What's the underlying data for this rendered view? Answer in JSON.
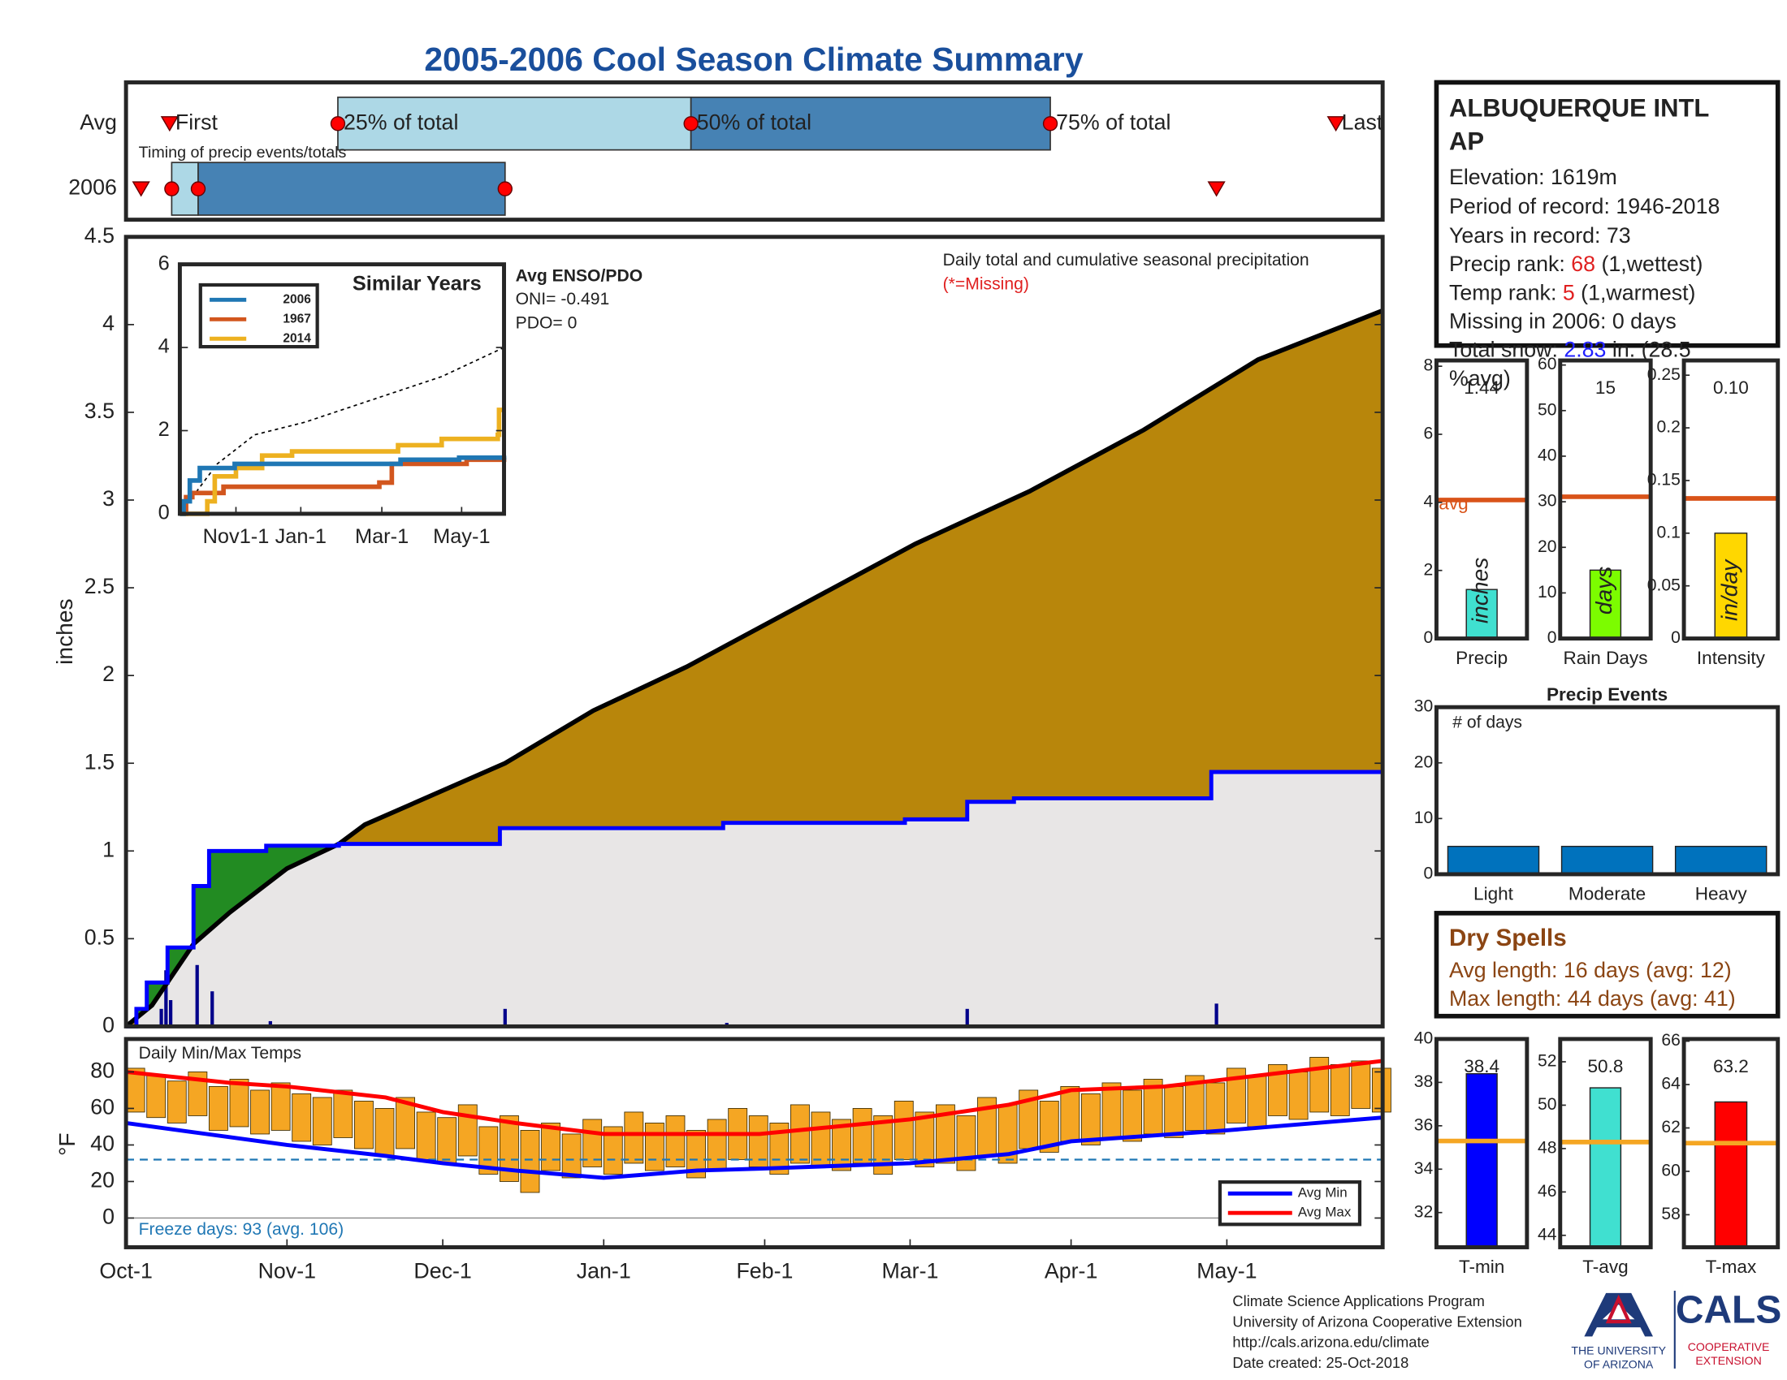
{
  "title": "2005-2006 Cool Season Climate Summary",
  "chart_data": [
    {
      "type": "timing",
      "subtitle": "Timing of precip events/totals",
      "xlim": [
        0,
        242
      ],
      "rows": [
        {
          "name": "Avg",
          "first": 8.4,
          "p25": 40.8,
          "p50": 108.8,
          "p75": 178,
          "last": 233,
          "labels": {
            "first": "First",
            "p25": "25% of total",
            "p50": "50% of total",
            "p75": "75% of total",
            "last": "Last"
          }
        },
        {
          "name": "2006",
          "first": 2.9,
          "p25": 8.8,
          "p50": 13.9,
          "p75": 73,
          "last": 210
        }
      ],
      "colors": {
        "light": "#add8e6",
        "dark": "#4682b4",
        "marker": "#ff0000"
      }
    },
    {
      "type": "area",
      "ylabel": "inches",
      "annotation": "Daily total and cumulative seasonal precipitation",
      "note": "(*=Missing)",
      "xlim": [
        0,
        242
      ],
      "ylim": [
        0,
        4.5
      ],
      "yticks": [
        0,
        0.5,
        1,
        1.5,
        2,
        2.5,
        3,
        3.5,
        4,
        4.5
      ],
      "series": [
        {
          "color": "#0000ff",
          "step": true,
          "x": [
            0,
            2,
            4,
            8,
            13,
            16,
            27,
            41,
            72,
            115,
            150,
            162,
            171,
            209,
            242
          ],
          "values": [
            0,
            0.1,
            0.25,
            0.45,
            0.8,
            1.0,
            1.03,
            1.04,
            1.13,
            1.16,
            1.18,
            1.28,
            1.3,
            1.45,
            1.45
          ]
        },
        {
          "color": "#000000",
          "step": false,
          "x": [
            0,
            5,
            13,
            20,
            31,
            41,
            46,
            73,
            90,
            108,
            130,
            152,
            174,
            196,
            218,
            242
          ],
          "values": [
            0,
            0.12,
            0.47,
            0.65,
            0.9,
            1.04,
            1.15,
            1.5,
            1.8,
            2.05,
            2.4,
            2.75,
            3.05,
            3.4,
            3.8,
            4.08
          ]
        }
      ],
      "daily": {
        "color": "#00008b",
        "x": [
          6.8,
          7.7,
          8.6,
          13.7,
          16.6,
          27.8,
          73,
          115.7,
          162,
          210
        ],
        "values": [
          0.1,
          0.32,
          0.15,
          0.35,
          0.2,
          0.03,
          0.1,
          0.02,
          0.1,
          0.13
        ]
      },
      "fill_colors": {
        "above": "#228b22",
        "below": "#b8860b",
        "under": "#e8e6e6"
      }
    },
    {
      "type": "line",
      "title": "Similar Years",
      "xlim": [
        0,
        260
      ],
      "ylim": [
        0,
        6
      ],
      "yticks": [
        0,
        2,
        4,
        6
      ],
      "xticks": [
        {
          "value": 45,
          "label": "Nov1-1"
        },
        {
          "value": 97,
          "label": "Jan-1"
        },
        {
          "value": 162,
          "label": "Mar-1"
        },
        {
          "value": 226,
          "label": "May-1"
        }
      ],
      "series": [
        {
          "name": "2006",
          "color": "#1f77b4",
          "x": [
            0,
            3,
            8,
            16,
            44,
            177,
            224,
            260
          ],
          "values": [
            0,
            0.3,
            0.8,
            1.1,
            1.2,
            1.3,
            1.35,
            1.4
          ]
        },
        {
          "name": "1967",
          "color": "#d2561e",
          "x": [
            0,
            5,
            10,
            35,
            160,
            170,
            230,
            260
          ],
          "values": [
            0,
            0.4,
            0.5,
            0.65,
            0.75,
            1.2,
            1.3,
            1.35
          ]
        },
        {
          "name": "2014",
          "color": "#edb120",
          "x": [
            0,
            22,
            28,
            45,
            66,
            90,
            130,
            175,
            210,
            255,
            256,
            260
          ],
          "values": [
            0,
            0.3,
            0.9,
            1.1,
            1.4,
            1.5,
            1.5,
            1.65,
            1.8,
            1.9,
            2.5,
            2.5
          ]
        }
      ],
      "avg": {
        "color": "#000000",
        "x": [
          0,
          10,
          30,
          60,
          100,
          160,
          210,
          260
        ],
        "values": [
          0,
          0.4,
          1.2,
          1.9,
          2.2,
          2.8,
          3.3,
          4.0
        ]
      },
      "annotation_title": "Avg ENSO/PDO",
      "annotations": [
        "ONI= -0.491",
        "PDO= 0"
      ]
    },
    {
      "type": "range-bar",
      "title": "Daily Min/Max Temps",
      "ylabel": "°F",
      "xlim": [
        0,
        242
      ],
      "ylim": [
        -16,
        98
      ],
      "yticks": [
        0,
        20,
        40,
        60,
        80
      ],
      "xticks": [
        {
          "value": 0,
          "label": "Oct-1"
        },
        {
          "value": 31,
          "label": "Nov-1"
        },
        {
          "value": 61,
          "label": "Dec-1"
        },
        {
          "value": 92,
          "label": "Jan-1"
        },
        {
          "value": 123,
          "label": "Feb-1"
        },
        {
          "value": 151,
          "label": "Mar-1"
        },
        {
          "value": 182,
          "label": "Apr-1"
        },
        {
          "value": 212,
          "label": "May-1"
        }
      ],
      "x": [
        0,
        4,
        8,
        12,
        16,
        20,
        24,
        28,
        32,
        36,
        40,
        44,
        48,
        52,
        56,
        60,
        64,
        68,
        72,
        76,
        80,
        84,
        88,
        92,
        96,
        100,
        104,
        108,
        112,
        116,
        120,
        124,
        128,
        132,
        136,
        140,
        144,
        148,
        152,
        156,
        160,
        164,
        168,
        172,
        176,
        180,
        184,
        188,
        192,
        196,
        200,
        204,
        208,
        212,
        216,
        220,
        224,
        228,
        232,
        236,
        240
      ],
      "low": [
        58,
        55,
        52,
        56,
        48,
        50,
        46,
        48,
        42,
        40,
        44,
        38,
        34,
        38,
        32,
        30,
        34,
        24,
        20,
        14,
        26,
        22,
        28,
        24,
        30,
        26,
        28,
        22,
        26,
        32,
        28,
        24,
        30,
        28,
        26,
        30,
        24,
        32,
        28,
        30,
        26,
        34,
        30,
        38,
        36,
        42,
        40,
        44,
        42,
        46,
        44,
        48,
        46,
        52,
        50,
        56,
        54,
        58,
        56,
        60,
        58
      ],
      "high": [
        82,
        78,
        75,
        80,
        72,
        76,
        70,
        74,
        68,
        66,
        70,
        64,
        60,
        66,
        58,
        55,
        62,
        50,
        56,
        48,
        52,
        46,
        54,
        50,
        58,
        52,
        56,
        48,
        54,
        60,
        56,
        52,
        62,
        58,
        54,
        60,
        56,
        64,
        58,
        62,
        56,
        66,
        62,
        70,
        64,
        72,
        68,
        74,
        70,
        76,
        72,
        78,
        74,
        82,
        78,
        84,
        80,
        88,
        84,
        86,
        82
      ],
      "bar_color": "#f5a623",
      "freeze": {
        "value": 32,
        "color": "#1f77b4"
      },
      "annotation": "Freeze days: 93 (avg. 106)",
      "series": [
        {
          "name": "Avg Min",
          "color": "#0000ff",
          "x": [
            0,
            31,
            50,
            61,
            75,
            92,
            110,
            122,
            151,
            170,
            182,
            212,
            242
          ],
          "values": [
            52,
            40,
            34,
            30,
            26,
            22,
            26,
            27,
            30,
            35,
            42,
            48,
            55
          ]
        },
        {
          "name": "Avg Max",
          "color": "#ff0000",
          "x": [
            0,
            20,
            31,
            50,
            61,
            75,
            92,
            110,
            122,
            151,
            170,
            182,
            200,
            212,
            242
          ],
          "values": [
            80,
            74,
            72,
            66,
            58,
            52,
            46,
            46,
            46,
            54,
            62,
            70,
            72,
            76,
            86
          ]
        }
      ]
    },
    {
      "type": "bar",
      "categories": [
        "Precip"
      ],
      "values": [
        1.44
      ],
      "color": "#40e0d0",
      "ylim": [
        0,
        8.17
      ],
      "yticks": [
        0,
        2,
        4,
        6,
        8
      ],
      "avg": 4.07,
      "avg_color": "#d95319",
      "avg_label": "avg",
      "unit": "inches"
    },
    {
      "type": "bar",
      "categories": [
        "Rain Days"
      ],
      "values": [
        15
      ],
      "color": "#7cfc00",
      "ylim": [
        0,
        61
      ],
      "yticks": [
        0,
        10,
        20,
        30,
        40,
        50,
        60
      ],
      "avg": 31.1,
      "avg_color": "#d95319",
      "unit": "days"
    },
    {
      "type": "bar",
      "categories": [
        "Intensity"
      ],
      "values": [
        0.1
      ],
      "value_labels": [
        "0.10"
      ],
      "color": "#ffd700",
      "ylim": [
        0,
        0.264
      ],
      "yticks": [
        0,
        0.05,
        0.1,
        0.15,
        0.2,
        0.25
      ],
      "avg": 0.133,
      "avg_color": "#d95319",
      "unit": "in/day"
    },
    {
      "type": "bar",
      "title": "Precip Events",
      "annotation": "# of days",
      "categories": [
        "Light",
        "Moderate",
        "Heavy"
      ],
      "values": [
        5,
        5,
        5
      ],
      "color": "#0072bd",
      "ylim": [
        0,
        30
      ],
      "yticks": [
        0,
        10,
        20,
        30
      ]
    },
    {
      "type": "bar",
      "categories": [
        "T-min"
      ],
      "values": [
        38.4
      ],
      "color": "#0000ff",
      "ylim": [
        30.4,
        40
      ],
      "yticks": [
        32,
        34,
        36,
        38,
        40
      ],
      "avg": 35.3,
      "avg_color": "#f5a623"
    },
    {
      "type": "bar",
      "categories": [
        "T-avg"
      ],
      "values": [
        50.8
      ],
      "color": "#40e0d0",
      "ylim": [
        43.45,
        53.05
      ],
      "yticks": [
        44,
        46,
        48,
        50,
        52
      ],
      "avg": 48.3,
      "avg_color": "#f5a623"
    },
    {
      "type": "bar",
      "categories": [
        "T-max"
      ],
      "values": [
        63.2
      ],
      "color": "#ff0000",
      "ylim": [
        56.5,
        66.1
      ],
      "yticks": [
        58,
        60,
        62,
        64,
        66
      ],
      "avg": 61.3,
      "avg_color": "#f5a623"
    }
  ],
  "station": {
    "name_lines": [
      "ALBUQUERQUE INTL",
      "AP"
    ],
    "lines": [
      "Elevation: 1619m",
      "Period of record: 1946-2018",
      "Years in record: 73"
    ],
    "precip_rank": {
      "label": "Precip rank: ",
      "value": "68",
      "note": " (1,wettest)"
    },
    "temp_rank": {
      "label": "Temp rank: ",
      "value": "5",
      "note": " (1,warmest)"
    },
    "missing": "Missing in 2006: 0 days",
    "snow": {
      "label": "Total snow: ",
      "value": "2.83",
      "note": " in. (28.5",
      "note2": "%avg)"
    }
  },
  "dry_spells": {
    "title": "Dry Spells",
    "lines": [
      "Avg length: 16 days (avg: 12)",
      "Max length: 44 days (avg: 41)"
    ]
  },
  "footer": {
    "lines": [
      "Climate Science Applications Program",
      "University of Arizona Cooperative Extension",
      "http://cals.arizona.edu/climate",
      "Date created: 25-Oct-2018"
    ],
    "logo": {
      "ua": [
        "THE UNIVERSITY",
        "OF ARIZONA"
      ],
      "cals": "CALS",
      "ext": [
        "COOPERATIVE",
        "EXTENSION"
      ]
    }
  }
}
